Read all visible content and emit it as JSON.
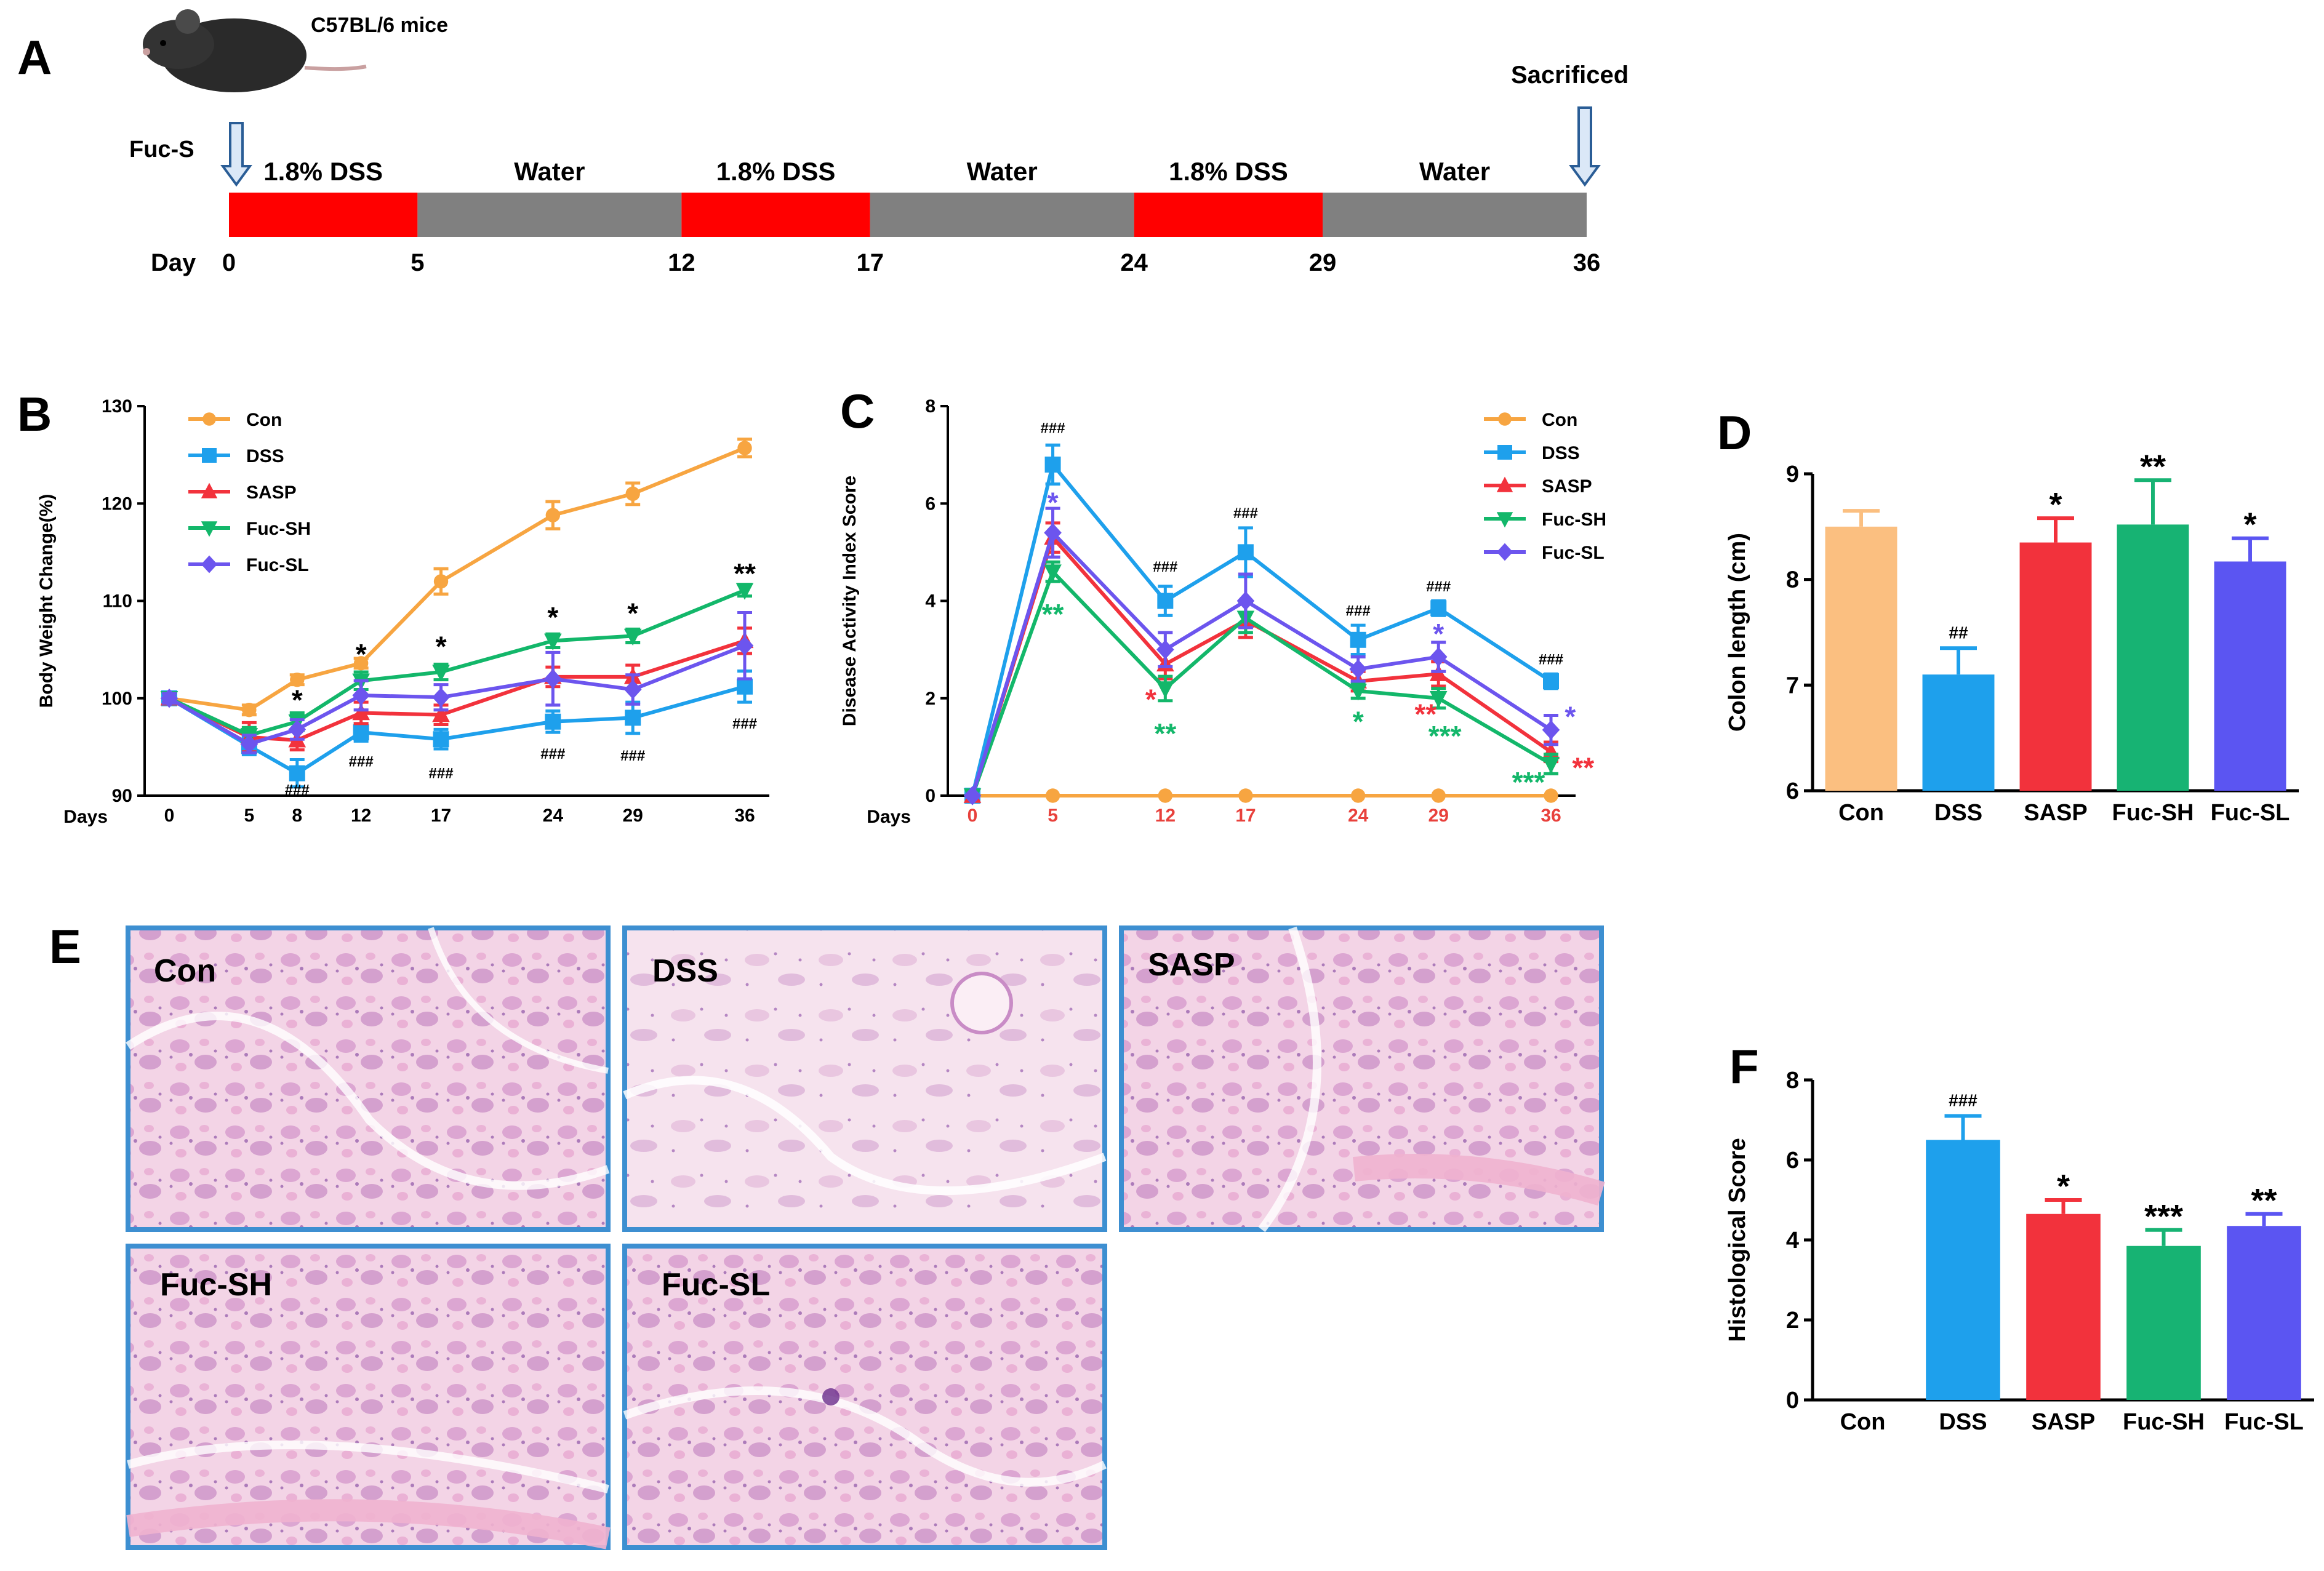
{
  "panels": {
    "A": "A",
    "B": "B",
    "C": "C",
    "D": "D",
    "E": "E",
    "F": "F"
  },
  "timeline": {
    "mouse_label": "C57BL/6 mice",
    "treatment_label": "Fuc-S",
    "end_label": "Sacrificed",
    "day_label": "Day",
    "segments": [
      {
        "label": "1.8% DSS",
        "start": 0,
        "end": 5,
        "color": "#ff0000"
      },
      {
        "label": "Water",
        "start": 5,
        "end": 12,
        "color": "#808080"
      },
      {
        "label": "1.8% DSS",
        "start": 12,
        "end": 17,
        "color": "#ff0000"
      },
      {
        "label": "Water",
        "start": 17,
        "end": 24,
        "color": "#808080"
      },
      {
        "label": "1.8% DSS",
        "start": 24,
        "end": 29,
        "color": "#ff0000"
      },
      {
        "label": "Water",
        "start": 29,
        "end": 36,
        "color": "#808080"
      }
    ],
    "ticks": [
      "0",
      "5",
      "12",
      "17",
      "24",
      "29",
      "36"
    ]
  },
  "colors": {
    "Con": "#f7a541",
    "DSS": "#1ea0ec",
    "SASP": "#f2323c",
    "Fuc-SH": "#13b76a",
    "Fuc-SL": "#6c55ee",
    "axis": "#000000",
    "redText": "#e8413c"
  },
  "chart_data": [
    {
      "panel": "B",
      "type": "line",
      "ylabel": "Body Weight Change(%)",
      "xlabel": "Days",
      "x": [
        0,
        5,
        8,
        12,
        17,
        24,
        29,
        36
      ],
      "x_labels": [
        "0",
        "5",
        "8",
        "12",
        "17",
        "24",
        "29",
        "36"
      ],
      "ylim": [
        90,
        130
      ],
      "yticks": [
        "90",
        "100",
        "110",
        "120",
        "130"
      ],
      "series": [
        {
          "name": "Con",
          "values": [
            100,
            98.8,
            101.9,
            103.6,
            112,
            118.8,
            121,
            125.7
          ],
          "err": [
            0.5,
            0.5,
            0.5,
            0.5,
            1.3,
            1.4,
            1.1,
            0.9
          ]
        },
        {
          "name": "DSS",
          "values": [
            100,
            95.1,
            92.3,
            96.5,
            95.8,
            97.6,
            98.0,
            101.2
          ],
          "err": [
            0.5,
            0.9,
            1.4,
            0.9,
            1.0,
            1.1,
            1.6,
            1.6
          ]
        },
        {
          "name": "SASP",
          "values": [
            100,
            96.0,
            95.7,
            98.5,
            98.3,
            102.2,
            102.2,
            105.9
          ],
          "err": [
            0.5,
            1.5,
            1.0,
            1.1,
            1.0,
            1.0,
            1.2,
            1.3
          ]
        },
        {
          "name": "Fuc-SH",
          "values": [
            100,
            96.2,
            97.6,
            101.8,
            102.7,
            105.9,
            106.4,
            111.1
          ],
          "err": [
            0.5,
            0.8,
            0.9,
            0.9,
            0.8,
            0.7,
            0.7,
            0.6
          ]
        },
        {
          "name": "Fuc-SL",
          "values": [
            100,
            95.3,
            96.8,
            100.3,
            100.1,
            102.0,
            100.9,
            105.4
          ],
          "err": [
            0.5,
            0.9,
            1.0,
            1.5,
            1.3,
            2.7,
            1.5,
            3.4
          ]
        }
      ],
      "annotations": [
        {
          "x": 8,
          "y": 99.7,
          "text": "*",
          "color": "#000000"
        },
        {
          "x": 12,
          "y": 104.4,
          "text": "*",
          "color": "#000000"
        },
        {
          "x": 17,
          "y": 105.2,
          "text": "*",
          "color": "#000000"
        },
        {
          "x": 24,
          "y": 108.2,
          "text": "*",
          "color": "#000000"
        },
        {
          "x": 29,
          "y": 108.6,
          "text": "*",
          "color": "#000000"
        },
        {
          "x": 36,
          "y": 112.7,
          "text": "**",
          "color": "#000000"
        },
        {
          "x": 8,
          "y": 90.6,
          "text": "###",
          "color": "#000000"
        },
        {
          "x": 12,
          "y": 93.5,
          "text": "###",
          "color": "#000000"
        },
        {
          "x": 17,
          "y": 92.3,
          "text": "###",
          "color": "#000000"
        },
        {
          "x": 24,
          "y": 94.3,
          "text": "###",
          "color": "#000000"
        },
        {
          "x": 29,
          "y": 94.1,
          "text": "###",
          "color": "#000000"
        },
        {
          "x": 36,
          "y": 97.4,
          "text": "###",
          "color": "#000000"
        }
      ]
    },
    {
      "panel": "C",
      "type": "line",
      "ylabel": "Disease Activity Index Score",
      "xlabel": "Days",
      "x": [
        0,
        5,
        12,
        17,
        24,
        29,
        36
      ],
      "x_labels": [
        "0",
        "5",
        "12",
        "17",
        "24",
        "29",
        "36"
      ],
      "ylim": [
        0,
        8
      ],
      "yticks": [
        "0",
        "2",
        "4",
        "6",
        "8"
      ],
      "series": [
        {
          "name": "Con",
          "values": [
            0,
            0,
            0,
            0,
            0,
            0,
            0
          ],
          "err": [
            0,
            0,
            0,
            0,
            0,
            0,
            0
          ]
        },
        {
          "name": "DSS",
          "values": [
            0,
            6.8,
            4.0,
            5.0,
            3.2,
            3.85,
            2.35
          ],
          "err": [
            0,
            0.4,
            0.3,
            0.5,
            0.3,
            0.15,
            0.15
          ]
        },
        {
          "name": "SASP",
          "values": [
            0,
            5.3,
            2.7,
            3.6,
            2.35,
            2.5,
            0.9
          ],
          "err": [
            0,
            0.3,
            0.3,
            0.35,
            0.2,
            0.25,
            0.2
          ]
        },
        {
          "name": "Fuc-SH",
          "values": [
            0,
            4.6,
            2.2,
            3.65,
            2.15,
            2.0,
            0.65
          ],
          "err": [
            0,
            0.2,
            0.25,
            0.3,
            0.15,
            0.2,
            0.2
          ]
        },
        {
          "name": "Fuc-SL",
          "values": [
            0,
            5.4,
            3.0,
            4.0,
            2.6,
            2.85,
            1.35
          ],
          "err": [
            0,
            0.5,
            0.35,
            0.55,
            0.25,
            0.3,
            0.3
          ]
        }
      ],
      "annotations": [
        {
          "x": 5,
          "y": 7.55,
          "text": "###",
          "color": "#000000"
        },
        {
          "x": 12,
          "y": 4.7,
          "text": "###",
          "color": "#000000"
        },
        {
          "x": 17,
          "y": 5.8,
          "text": "###",
          "color": "#000000"
        },
        {
          "x": 24,
          "y": 3.8,
          "text": "###",
          "color": "#000000"
        },
        {
          "x": 29,
          "y": 4.3,
          "text": "###",
          "color": "#000000"
        },
        {
          "x": 36,
          "y": 2.8,
          "text": "###",
          "color": "#000000"
        },
        {
          "x": 5,
          "y": 6.0,
          "text": "*",
          "color": "#6c55ee"
        },
        {
          "x": 5,
          "y": 3.7,
          "text": "**",
          "color": "#13b76a"
        },
        {
          "x": 11.1,
          "y": 1.95,
          "text": "*",
          "color": "#f2323c"
        },
        {
          "x": 12,
          "y": 1.25,
          "text": "**",
          "color": "#13b76a"
        },
        {
          "x": 24,
          "y": 1.5,
          "text": "*",
          "color": "#13b76a"
        },
        {
          "x": 28.2,
          "y": 1.65,
          "text": "**",
          "color": "#f2323c"
        },
        {
          "x": 29,
          "y": 3.3,
          "text": "*",
          "color": "#6c55ee"
        },
        {
          "x": 29.4,
          "y": 1.2,
          "text": "***",
          "color": "#13b76a"
        },
        {
          "x": 34.6,
          "y": 0.25,
          "text": "***",
          "color": "#13b76a"
        },
        {
          "x": 37.2,
          "y": 1.6,
          "text": "*",
          "color": "#6c55ee"
        },
        {
          "x": 38.0,
          "y": 0.55,
          "text": "**",
          "color": "#f2323c"
        }
      ]
    },
    {
      "panel": "D",
      "type": "bar",
      "ylabel": "Colon length (cm)",
      "categories": [
        "Con",
        "DSS",
        "SASP",
        "Fuc-SH",
        "Fuc-SL"
      ],
      "values": [
        8.5,
        7.1,
        8.35,
        8.52,
        8.17
      ],
      "err": [
        0.15,
        0.25,
        0.23,
        0.42,
        0.22
      ],
      "bar_colors": [
        "#fbbf80",
        "#1ea0ec",
        "#f2323c",
        "#17b373",
        "#5b55f2"
      ],
      "ylim": [
        6,
        9
      ],
      "yticks": [
        "6",
        "7",
        "8",
        "9"
      ],
      "labels": [
        "",
        "##",
        "*",
        "**",
        "*"
      ]
    },
    {
      "panel": "F",
      "type": "bar",
      "ylabel": "Histological Score",
      "categories": [
        "Con",
        "DSS",
        "SASP",
        "Fuc-SH",
        "Fuc-SL"
      ],
      "values": [
        0,
        6.5,
        4.65,
        3.85,
        4.35
      ],
      "err": [
        0,
        0.6,
        0.35,
        0.4,
        0.3
      ],
      "bar_colors": [
        "#fbbf80",
        "#1ea0ec",
        "#f2323c",
        "#17b373",
        "#5b55f2"
      ],
      "ylim": [
        0,
        8
      ],
      "yticks": [
        "0",
        "2",
        "4",
        "6",
        "8"
      ],
      "labels": [
        "",
        "###",
        "*",
        "***",
        "**"
      ]
    }
  ],
  "histology": [
    {
      "label": "Con"
    },
    {
      "label": "DSS"
    },
    {
      "label": "SASP"
    },
    {
      "label": "Fuc-SH"
    },
    {
      "label": "Fuc-SL"
    }
  ]
}
